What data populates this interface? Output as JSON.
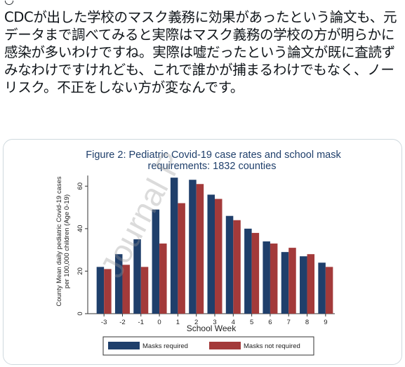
{
  "tweet": {
    "text": "CDCが出した学校のマスク義務に効果があったという論文も、元データまで調べてみると実際はマスク義務の学校の方が明らかに感染が多いわけですね。実際は嘘だったという論文が既に査読ずみなわけですけれども、これで誰かが捕まるわけでもなく、ノーリスク。不正をしない方が変なんです。"
  },
  "image": {
    "watermark": "Journal P"
  },
  "chart_data": {
    "type": "bar",
    "title": "Figure 2: Pediatric Covid-19 case rates and school mask",
    "subtitle": "requirements: 1832 counties",
    "xlabel": "School Week",
    "ylabel": "County Mean daily pediatric Covid-19 cases",
    "ylabel2": "per 100,000 children (Age 0-19)",
    "ylim": [
      0,
      70
    ],
    "yticks": [
      "0",
      "20",
      "40",
      "60"
    ],
    "categories": [
      "-3",
      "-2",
      "-1",
      "0",
      "1",
      "2",
      "3",
      "4",
      "5",
      "6",
      "7",
      "8",
      "9"
    ],
    "series": [
      {
        "name": "Masks required",
        "color": "#1f3f6b",
        "values": [
          22,
          28,
          35,
          49,
          64,
          63,
          56,
          46,
          40,
          34,
          29,
          27,
          24
        ]
      },
      {
        "name": "Masks not required",
        "color": "#a33a3a",
        "values": [
          21,
          23,
          22,
          33,
          52,
          61,
          54,
          44,
          38,
          33,
          31,
          28,
          22
        ]
      }
    ],
    "grid": false,
    "legend": "bottom"
  }
}
